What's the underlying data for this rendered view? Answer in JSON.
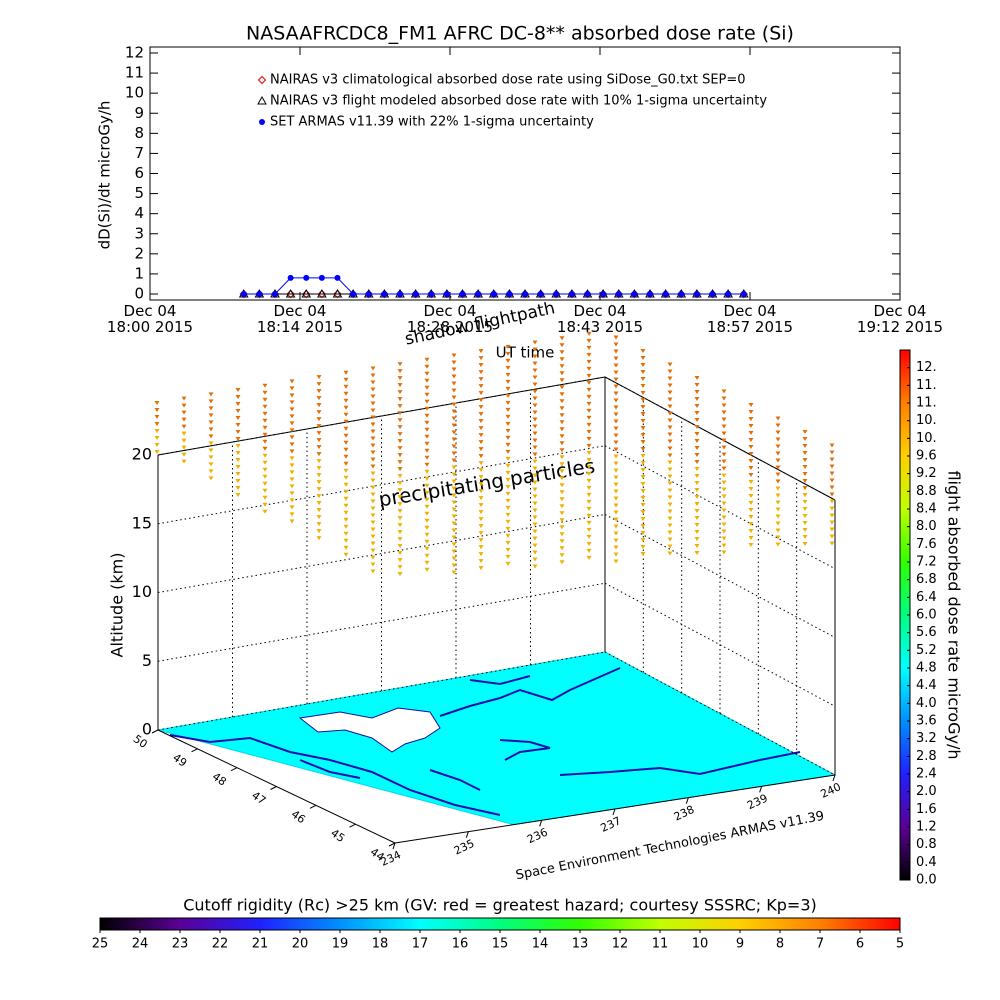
{
  "chart_data": [
    {
      "type": "line",
      "title": "NASAAFRCDC8_FM1 AFRC DC-8** absorbed dose rate (Si)",
      "ylabel": "dD(Si)/dt microGy/h",
      "xlabel": "UT time",
      "legend": "upper left",
      "xlim": [
        "2015-12-04T18:00:00",
        "2015-12-04T19:12:00"
      ],
      "xticks": [
        {
          "value": "2015-12-04T18:00:00",
          "label": "Dec 04\n18:00 2015"
        },
        {
          "value": "2015-12-04T18:14:24",
          "label": "Dec 04\n18:14 2015"
        },
        {
          "value": "2015-12-04T18:28:48",
          "label": "Dec 04\n18:28 2015"
        },
        {
          "value": "2015-12-04T18:43:12",
          "label": "Dec 04\n18:43 2015"
        },
        {
          "value": "2015-12-04T18:57:36",
          "label": "Dec 04\n18:57 2015"
        },
        {
          "value": "2015-12-04T19:12:00",
          "label": "Dec 04\n19:12 2015"
        }
      ],
      "ylim": [
        0,
        12
      ],
      "yticks": [
        0,
        1,
        2,
        3,
        4,
        5,
        6,
        7,
        8,
        9,
        10,
        11,
        12
      ],
      "x": [
        "2015-12-04T18:09:00",
        "2015-12-04T18:10:30",
        "2015-12-04T18:12:00",
        "2015-12-04T18:13:30",
        "2015-12-04T18:15:00",
        "2015-12-04T18:16:30",
        "2015-12-04T18:18:00",
        "2015-12-04T18:19:30",
        "2015-12-04T18:21:00",
        "2015-12-04T18:22:30",
        "2015-12-04T18:24:00",
        "2015-12-04T18:25:30",
        "2015-12-04T18:27:00",
        "2015-12-04T18:28:30",
        "2015-12-04T18:30:00",
        "2015-12-04T18:31:30",
        "2015-12-04T18:33:00",
        "2015-12-04T18:34:30",
        "2015-12-04T18:36:00",
        "2015-12-04T18:37:30",
        "2015-12-04T18:39:00",
        "2015-12-04T18:40:30",
        "2015-12-04T18:42:00",
        "2015-12-04T18:43:30",
        "2015-12-04T18:45:00",
        "2015-12-04T18:46:30",
        "2015-12-04T18:48:00",
        "2015-12-04T18:49:30",
        "2015-12-04T18:51:00",
        "2015-12-04T18:52:30",
        "2015-12-04T18:54:00",
        "2015-12-04T18:55:30",
        "2015-12-04T18:57:00"
      ],
      "series": [
        {
          "name": "NAIRAS v3 climatological absorbed dose rate using SiDose_G0.txt SEP=0",
          "color": "#e00000",
          "marker": "diamond",
          "values": [
            0,
            0,
            0,
            0,
            0,
            0,
            0,
            0,
            0,
            0,
            0,
            0,
            0,
            0,
            0,
            0,
            0,
            0,
            0,
            0,
            0,
            0,
            0,
            0,
            0,
            0,
            0,
            0,
            0,
            0,
            0,
            0,
            0
          ]
        },
        {
          "name": "NAIRAS v3 flight modeled absorbed dose rate with 10% 1-sigma uncertainty",
          "color": "#000000",
          "marker": "triangle",
          "values": [
            0,
            0,
            0,
            0,
            0,
            0,
            0,
            0,
            0,
            0,
            0,
            0,
            0,
            0,
            0,
            0,
            0,
            0,
            0,
            0,
            0,
            0,
            0,
            0,
            0,
            0,
            0,
            0,
            0,
            0,
            0,
            0,
            0
          ]
        },
        {
          "name": "SET ARMAS v11.39 with 22% 1-sigma uncertainty",
          "color": "#0000ff",
          "marker": "circle",
          "values": [
            0,
            0,
            0,
            0.8,
            0.8,
            0.8,
            0.8,
            0,
            0,
            0,
            0,
            0,
            0,
            0,
            0,
            0,
            0,
            0,
            0,
            0,
            0,
            0,
            0,
            0,
            0,
            0,
            0,
            0,
            0,
            0,
            0,
            0,
            0
          ]
        }
      ]
    },
    {
      "type": "scatter3d",
      "zlabel": "Altitude (km)",
      "zlim": [
        0,
        20
      ],
      "zticks": [
        0,
        5,
        10,
        15,
        20
      ],
      "xlim": [
        234,
        240
      ],
      "xticks": [
        234,
        235,
        236,
        237,
        238,
        239,
        240
      ],
      "ylim": [
        44,
        50
      ],
      "yticks": [
        44,
        45,
        46,
        47,
        48,
        49,
        50
      ],
      "annotations": [
        "shadow flightpath",
        "precipitating particles"
      ],
      "credit": "Space Environment Technologies ARMAS v11.39",
      "grid": true
    },
    {
      "type": "colorbar",
      "label": "flight absorbed dose rate microGy/h",
      "ylim": [
        0,
        12
      ],
      "yticks": [
        {
          "value": 0,
          "label": "0.0"
        },
        0.4,
        0.8,
        1.2,
        1.6,
        {
          "value": 2,
          "label": "2.0"
        },
        2.4,
        2.8,
        3.2,
        3.6,
        {
          "value": 4,
          "label": "4.0"
        },
        4.4,
        4.8,
        5.2,
        5.6,
        {
          "value": 6,
          "label": "6.0"
        },
        6.4,
        6.8,
        7.2,
        7.6,
        {
          "value": 8,
          "label": "8.0"
        },
        8.4,
        8.8,
        9.2,
        9.6,
        {
          "value": 10,
          "label": "10."
        },
        {
          "value": 10.4,
          "label": "10."
        },
        {
          "value": 10.8,
          "label": "11."
        },
        {
          "value": 11.2,
          "label": "11."
        },
        {
          "value": 11.6,
          "label": "12."
        }
      ],
      "colors": [
        "#000000",
        "#5a0096",
        "#2020ff",
        "#0090ff",
        "#00ffff",
        "#00ff80",
        "#30ff00",
        "#c0ff00",
        "#ffd000",
        "#ff8000",
        "#ff0000"
      ]
    },
    {
      "type": "colorbar",
      "label": "Cutoff rigidity (Rc) >25 km (GV: red = greatest hazard; courtesy SSSRC; Kp=3)",
      "xlim": [
        25,
        5
      ],
      "xticks": [
        25,
        24,
        23,
        22,
        21,
        20,
        19,
        18,
        17,
        16,
        15,
        14,
        13,
        12,
        11,
        10,
        9,
        8,
        7,
        6,
        5
      ],
      "colors": [
        "#000000",
        "#5a0096",
        "#2020ff",
        "#0090ff",
        "#00ffff",
        "#00ff80",
        "#30ff00",
        "#c0ff00",
        "#ffd000",
        "#ff8000",
        "#ff0000"
      ]
    }
  ]
}
